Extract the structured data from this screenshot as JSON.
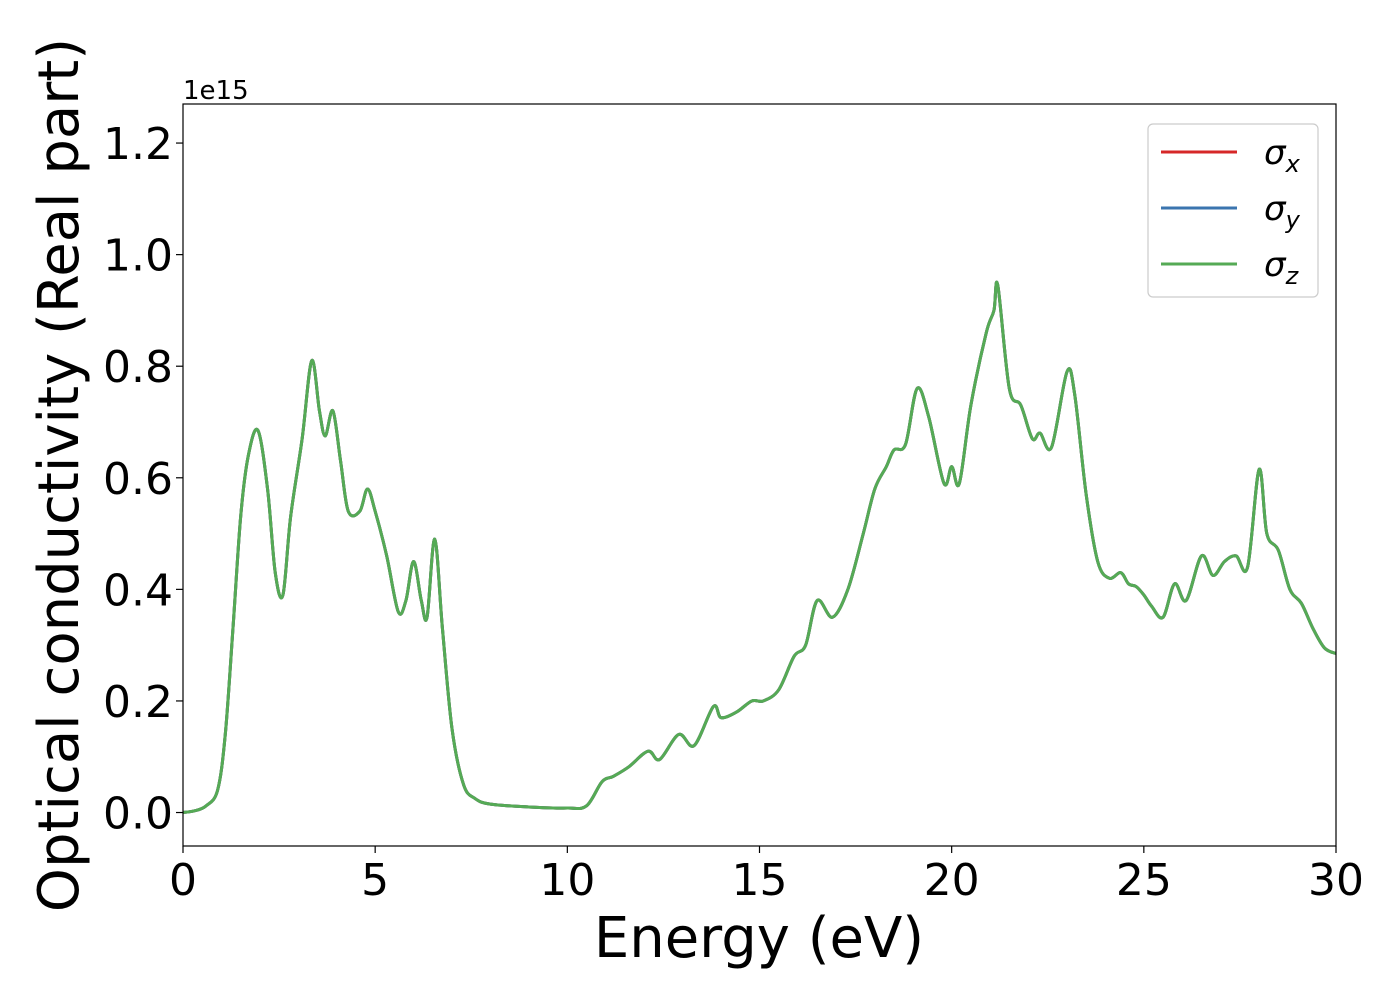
{
  "chart_data": {
    "type": "line",
    "title": "",
    "xlabel": "Energy (eV)",
    "ylabel": "Optical conductivity (Real part)",
    "y_offset_text": "1e15",
    "xlim": [
      0,
      30
    ],
    "ylim": [
      -0.06,
      1.27
    ],
    "xticks": [
      0,
      5,
      10,
      15,
      20,
      25,
      30
    ],
    "yticks": [
      0.0,
      0.2,
      0.4,
      0.6,
      0.8,
      1.0,
      1.2
    ],
    "grid": false,
    "legend_position": "top-right",
    "series": [
      {
        "name": "σx",
        "label_base": "σ",
        "label_sub": "x",
        "color": "#d62728",
        "note": "identical to σz (overlapping)"
      },
      {
        "name": "σy",
        "label_base": "σ",
        "label_sub": "y",
        "color": "#3b75af",
        "note": "identical to σz (overlapping)"
      },
      {
        "name": "σz",
        "label_base": "σ",
        "label_sub": "z",
        "color": "#55aa55"
      }
    ],
    "x": [
      0,
      0.3,
      0.6,
      0.9,
      1.1,
      1.3,
      1.5,
      1.7,
      1.95,
      2.2,
      2.4,
      2.6,
      2.8,
      3.1,
      3.35,
      3.55,
      3.7,
      3.9,
      4.1,
      4.3,
      4.6,
      4.8,
      5.0,
      5.3,
      5.6,
      5.8,
      6.0,
      6.2,
      6.35,
      6.55,
      6.75,
      7.0,
      7.3,
      7.6,
      8.0,
      9.0,
      10.0,
      10.5,
      10.9,
      11.2,
      11.6,
      12.1,
      12.4,
      12.9,
      13.3,
      13.8,
      14.0,
      14.4,
      14.8,
      15.1,
      15.5,
      15.9,
      16.2,
      16.5,
      16.9,
      17.3,
      17.7,
      18.0,
      18.3,
      18.5,
      18.8,
      19.1,
      19.4,
      19.8,
      20.0,
      20.2,
      20.5,
      20.9,
      21.1,
      21.2,
      21.5,
      21.8,
      22.1,
      22.3,
      22.6,
      23.0,
      23.2,
      23.5,
      23.8,
      24.1,
      24.4,
      24.6,
      24.8,
      25.0,
      25.2,
      25.5,
      25.8,
      26.1,
      26.5,
      26.8,
      27.1,
      27.4,
      27.7,
      28.0,
      28.2,
      28.5,
      28.8,
      29.1,
      29.4,
      29.7,
      30.0
    ],
    "y": [
      0.0,
      0.003,
      0.012,
      0.04,
      0.14,
      0.33,
      0.53,
      0.64,
      0.685,
      0.58,
      0.43,
      0.39,
      0.53,
      0.67,
      0.81,
      0.72,
      0.675,
      0.72,
      0.63,
      0.54,
      0.54,
      0.58,
      0.54,
      0.46,
      0.36,
      0.38,
      0.45,
      0.38,
      0.35,
      0.49,
      0.33,
      0.15,
      0.05,
      0.025,
      0.015,
      0.01,
      0.008,
      0.012,
      0.055,
      0.065,
      0.082,
      0.11,
      0.095,
      0.14,
      0.12,
      0.19,
      0.17,
      0.18,
      0.2,
      0.2,
      0.22,
      0.28,
      0.3,
      0.38,
      0.35,
      0.4,
      0.5,
      0.58,
      0.62,
      0.65,
      0.66,
      0.76,
      0.71,
      0.59,
      0.62,
      0.59,
      0.73,
      0.86,
      0.9,
      0.945,
      0.76,
      0.73,
      0.67,
      0.68,
      0.655,
      0.79,
      0.75,
      0.57,
      0.45,
      0.42,
      0.43,
      0.41,
      0.405,
      0.39,
      0.37,
      0.35,
      0.41,
      0.38,
      0.46,
      0.425,
      0.45,
      0.46,
      0.44,
      0.615,
      0.5,
      0.47,
      0.4,
      0.375,
      0.33,
      0.295,
      0.285
    ]
  }
}
